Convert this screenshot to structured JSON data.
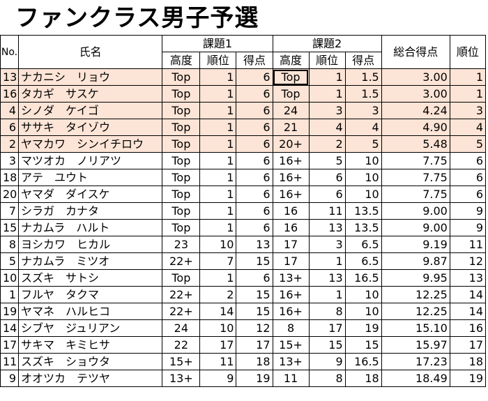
{
  "title": "ファンクラス男子予選",
  "headers": {
    "no": "No.",
    "name": "氏名",
    "problem1": "課題1",
    "problem2": "課題2",
    "height": "高度",
    "rank": "順位",
    "points": "得点",
    "total": "総合得点",
    "final_rank": "順位"
  },
  "highlight_color": "#fce4d6",
  "rows": [
    {
      "no": "13",
      "name": "ナカニシ　リョウ",
      "h1": "Top",
      "r1": "1",
      "p1": "6",
      "h2": "Top",
      "r2": "1",
      "p2": "1.5",
      "total": "3.00",
      "rank": "1"
    },
    {
      "no": "16",
      "name": "タカギ　サスケ",
      "h1": "Top",
      "r1": "1",
      "p1": "6",
      "h2": "Top",
      "r2": "1",
      "p2": "1.5",
      "total": "3.00",
      "rank": "1"
    },
    {
      "no": "4",
      "name": "シノダ　ケイゴ",
      "h1": "Top",
      "r1": "1",
      "p1": "6",
      "h2": "24",
      "r2": "3",
      "p2": "3",
      "total": "4.24",
      "rank": "3"
    },
    {
      "no": "6",
      "name": "ササキ　タイゾウ",
      "h1": "Top",
      "r1": "1",
      "p1": "6",
      "h2": "21",
      "r2": "4",
      "p2": "4",
      "total": "4.90",
      "rank": "4"
    },
    {
      "no": "2",
      "name": "ヤマカワ　シンイチロウ",
      "h1": "Top",
      "r1": "1",
      "p1": "6",
      "h2": "20+",
      "r2": "2",
      "p2": "5",
      "total": "5.48",
      "rank": "5"
    },
    {
      "no": "3",
      "name": "マツオカ　ノリアツ",
      "h1": "Top",
      "r1": "1",
      "p1": "6",
      "h2": "16+",
      "r2": "5",
      "p2": "10",
      "total": "7.75",
      "rank": "6"
    },
    {
      "no": "18",
      "name": "アテ　ユウト",
      "h1": "Top",
      "r1": "1",
      "p1": "6",
      "h2": "16+",
      "r2": "6",
      "p2": "10",
      "total": "7.75",
      "rank": "6"
    },
    {
      "no": "20",
      "name": "ヤマダ　ダイスケ",
      "h1": "Top",
      "r1": "1",
      "p1": "6",
      "h2": "16+",
      "r2": "6",
      "p2": "10",
      "total": "7.75",
      "rank": "6"
    },
    {
      "no": "7",
      "name": "シラガ　カナタ",
      "h1": "Top",
      "r1": "1",
      "p1": "6",
      "h2": "16",
      "r2": "11",
      "p2": "13.5",
      "total": "9.00",
      "rank": "9"
    },
    {
      "no": "15",
      "name": "ナカムラ　ハルト",
      "h1": "Top",
      "r1": "1",
      "p1": "6",
      "h2": "16",
      "r2": "13",
      "p2": "13.5",
      "total": "9.00",
      "rank": "9"
    },
    {
      "no": "8",
      "name": "ヨシカワ　ヒカル",
      "h1": "23",
      "r1": "10",
      "p1": "13",
      "h2": "17",
      "r2": "3",
      "p2": "6.5",
      "total": "9.19",
      "rank": "11"
    },
    {
      "no": "5",
      "name": "ナカムラ　ミツオ",
      "h1": "22+",
      "r1": "7",
      "p1": "15",
      "h2": "17",
      "r2": "1",
      "p2": "6.5",
      "total": "9.87",
      "rank": "12"
    },
    {
      "no": "10",
      "name": "スズキ　サトシ",
      "h1": "Top",
      "r1": "1",
      "p1": "6",
      "h2": "13+",
      "r2": "13",
      "p2": "16.5",
      "total": "9.95",
      "rank": "13"
    },
    {
      "no": "1",
      "name": "フルヤ　タクマ",
      "h1": "22+",
      "r1": "2",
      "p1": "15",
      "h2": "16+",
      "r2": "1",
      "p2": "10",
      "total": "12.25",
      "rank": "14"
    },
    {
      "no": "19",
      "name": "ヤマネ　ハルヒコ",
      "h1": "22+",
      "r1": "14",
      "p1": "15",
      "h2": "16+",
      "r2": "8",
      "p2": "10",
      "total": "12.25",
      "rank": "14"
    },
    {
      "no": "14",
      "name": "シブヤ　ジュリアン",
      "h1": "24",
      "r1": "10",
      "p1": "12",
      "h2": "8",
      "r2": "17",
      "p2": "19",
      "total": "15.10",
      "rank": "16"
    },
    {
      "no": "17",
      "name": "サキマ　キミヒサ",
      "h1": "22",
      "r1": "17",
      "p1": "17",
      "h2": "15+",
      "r2": "15",
      "p2": "15",
      "total": "15.97",
      "rank": "17"
    },
    {
      "no": "11",
      "name": "スズキ　ショウタ",
      "h1": "15+",
      "r1": "11",
      "p1": "18",
      "h2": "13+",
      "r2": "9",
      "p2": "16.5",
      "total": "17.23",
      "rank": "18"
    },
    {
      "no": "9",
      "name": "オオツカ　テツヤ",
      "h1": "13+",
      "r1": "9",
      "p1": "19",
      "h2": "11",
      "r2": "8",
      "p2": "18",
      "total": "18.49",
      "rank": "19"
    }
  ]
}
